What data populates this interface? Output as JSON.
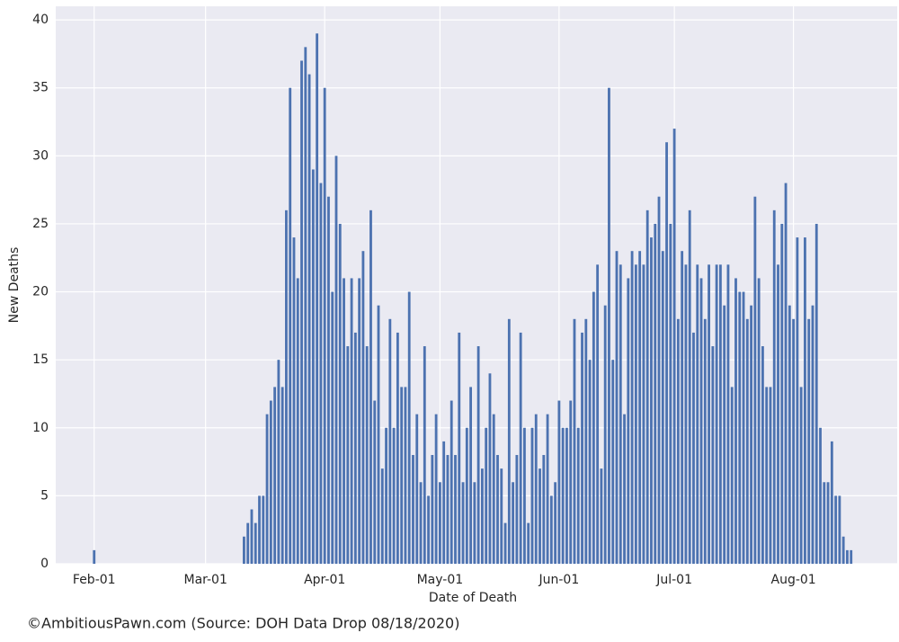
{
  "chart_data": {
    "type": "bar",
    "x_label": "Date of Death",
    "y_label": "New Deaths",
    "footer": "©AmbitiousPawn.com (Source: DOH Data Drop 08/18/2020)",
    "color": "#4c72b0",
    "grid": true,
    "xlim": [
      "Jan-22",
      "Aug-28"
    ],
    "xticks": [
      "Feb-01",
      "Mar-01",
      "Apr-01",
      "May-01",
      "Jun-01",
      "Jul-01",
      "Aug-01"
    ],
    "ylim": [
      0,
      41
    ],
    "yticks": [
      0,
      5,
      10,
      15,
      20,
      25,
      30,
      35,
      40
    ],
    "x": [
      "Feb-01",
      "Mar-11",
      "Mar-12",
      "Mar-13",
      "Mar-14",
      "Mar-15",
      "Mar-16",
      "Mar-17",
      "Mar-18",
      "Mar-19",
      "Mar-20",
      "Mar-21",
      "Mar-22",
      "Mar-23",
      "Mar-24",
      "Mar-25",
      "Mar-26",
      "Mar-27",
      "Mar-28",
      "Mar-29",
      "Mar-30",
      "Mar-31",
      "Apr-01",
      "Apr-02",
      "Apr-03",
      "Apr-04",
      "Apr-05",
      "Apr-06",
      "Apr-07",
      "Apr-08",
      "Apr-09",
      "Apr-10",
      "Apr-11",
      "Apr-12",
      "Apr-13",
      "Apr-14",
      "Apr-15",
      "Apr-16",
      "Apr-17",
      "Apr-18",
      "Apr-19",
      "Apr-20",
      "Apr-21",
      "Apr-22",
      "Apr-23",
      "Apr-24",
      "Apr-25",
      "Apr-26",
      "Apr-27",
      "Apr-28",
      "Apr-29",
      "Apr-30",
      "May-01",
      "May-02",
      "May-03",
      "May-04",
      "May-05",
      "May-06",
      "May-07",
      "May-08",
      "May-09",
      "May-10",
      "May-11",
      "May-12",
      "May-13",
      "May-14",
      "May-15",
      "May-16",
      "May-17",
      "May-18",
      "May-19",
      "May-20",
      "May-21",
      "May-22",
      "May-23",
      "May-24",
      "May-25",
      "May-26",
      "May-27",
      "May-28",
      "May-29",
      "May-30",
      "May-31",
      "Jun-01",
      "Jun-02",
      "Jun-03",
      "Jun-04",
      "Jun-05",
      "Jun-06",
      "Jun-07",
      "Jun-08",
      "Jun-09",
      "Jun-10",
      "Jun-11",
      "Jun-12",
      "Jun-13",
      "Jun-14",
      "Jun-15",
      "Jun-16",
      "Jun-17",
      "Jun-18",
      "Jun-19",
      "Jun-20",
      "Jun-21",
      "Jun-22",
      "Jun-23",
      "Jun-24",
      "Jun-25",
      "Jun-26",
      "Jun-27",
      "Jun-28",
      "Jun-29",
      "Jun-30",
      "Jul-01",
      "Jul-02",
      "Jul-03",
      "Jul-04",
      "Jul-05",
      "Jul-06",
      "Jul-07",
      "Jul-08",
      "Jul-09",
      "Jul-10",
      "Jul-11",
      "Jul-12",
      "Jul-13",
      "Jul-14",
      "Jul-15",
      "Jul-16",
      "Jul-17",
      "Jul-18",
      "Jul-19",
      "Jul-20",
      "Jul-21",
      "Jul-22",
      "Jul-23",
      "Jul-24",
      "Jul-25",
      "Jul-26",
      "Jul-27",
      "Jul-28",
      "Jul-29",
      "Jul-30",
      "Jul-31",
      "Aug-01",
      "Aug-02",
      "Aug-03",
      "Aug-04",
      "Aug-05",
      "Aug-06",
      "Aug-07",
      "Aug-08",
      "Aug-09",
      "Aug-10",
      "Aug-11",
      "Aug-12",
      "Aug-13",
      "Aug-14",
      "Aug-15",
      "Aug-16"
    ],
    "values": [
      1,
      2,
      3,
      4,
      3,
      5,
      5,
      11,
      12,
      13,
      15,
      13,
      26,
      35,
      24,
      21,
      37,
      38,
      36,
      29,
      39,
      28,
      35,
      27,
      20,
      30,
      25,
      21,
      16,
      21,
      17,
      21,
      23,
      16,
      26,
      12,
      19,
      7,
      10,
      18,
      10,
      17,
      13,
      13,
      20,
      8,
      11,
      6,
      16,
      5,
      8,
      11,
      6,
      9,
      8,
      12,
      8,
      17,
      6,
      10,
      13,
      6,
      16,
      7,
      10,
      14,
      11,
      8,
      7,
      3,
      18,
      6,
      8,
      17,
      10,
      3,
      10,
      11,
      7,
      8,
      11,
      5,
      6,
      12,
      10,
      10,
      12,
      18,
      10,
      17,
      18,
      15,
      20,
      22,
      7,
      19,
      35,
      15,
      23,
      22,
      11,
      21,
      23,
      22,
      23,
      22,
      26,
      24,
      25,
      27,
      23,
      31,
      25,
      32,
      18,
      23,
      22,
      26,
      17,
      22,
      21,
      18,
      22,
      16,
      22,
      22,
      19,
      22,
      13,
      21,
      20,
      20,
      18,
      19,
      27,
      21,
      16,
      13,
      13,
      26,
      22,
      25,
      28,
      19,
      18,
      24,
      13,
      24,
      18,
      19,
      25,
      10,
      6,
      6,
      9,
      5,
      5,
      2,
      1,
      1
    ]
  }
}
